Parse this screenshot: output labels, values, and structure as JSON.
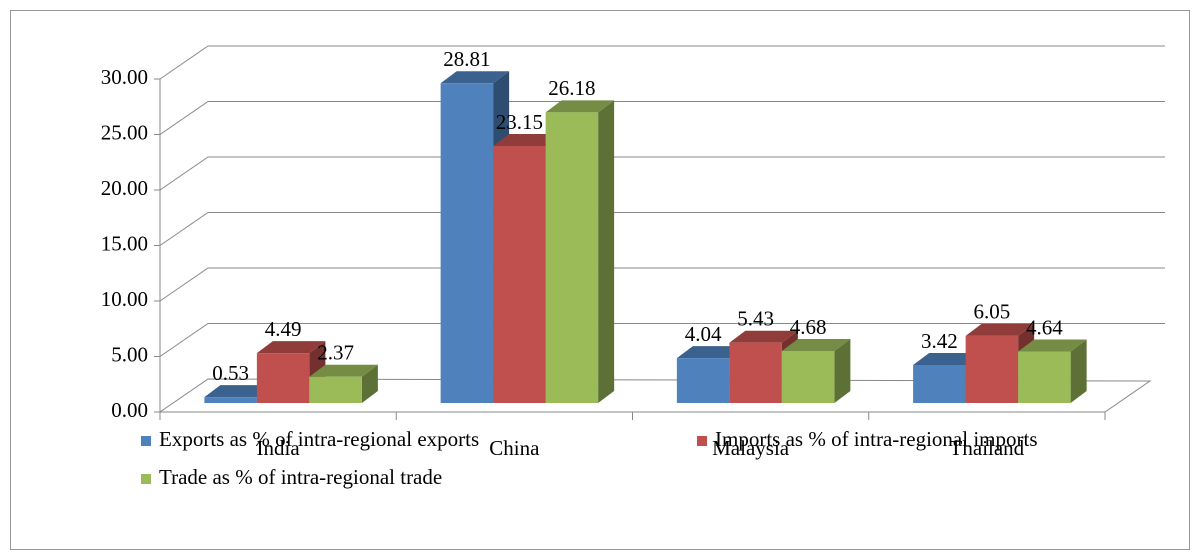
{
  "chart_data": {
    "type": "bar3d",
    "categories": [
      "India",
      "China",
      "Malaysia",
      "Thailand"
    ],
    "series": [
      {
        "name": "Exports as % of intra-regional exports",
        "color": "#4f81bd",
        "values": [
          0.53,
          28.81,
          4.04,
          3.42
        ]
      },
      {
        "name": "Imports as % of intra-regional imports",
        "color": "#c0504d",
        "values": [
          4.49,
          23.15,
          5.43,
          6.05
        ]
      },
      {
        "name": "Trade as % of intra-regional trade",
        "color": "#9bbb59",
        "values": [
          2.37,
          26.18,
          4.68,
          4.64
        ]
      }
    ],
    "ylim": [
      0,
      30
    ],
    "yticks": [
      {
        "value": 0,
        "label": "0.00"
      },
      {
        "value": 5,
        "label": "5.00"
      },
      {
        "value": 10,
        "label": "10.00"
      },
      {
        "value": 15,
        "label": "15.00"
      },
      {
        "value": 20,
        "label": "20.00"
      },
      {
        "value": 25,
        "label": "25.00"
      },
      {
        "value": 30,
        "label": "30.00"
      }
    ],
    "grid": true,
    "legend": "bottom"
  }
}
